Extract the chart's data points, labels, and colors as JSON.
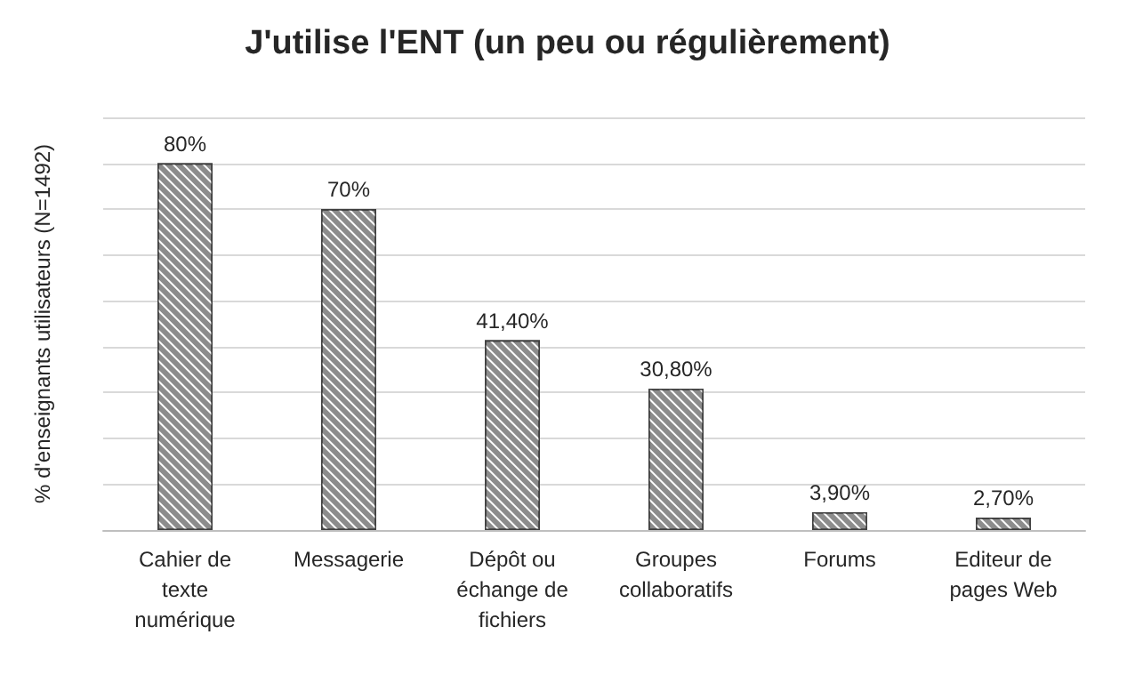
{
  "chart_data": {
    "type": "bar",
    "title": "J'utilise l'ENT (un peu ou régulièrement)",
    "ylabel": "% d'enseignants utilisateurs (N=1492)",
    "categories": [
      "Cahier de texte numérique",
      "Messagerie",
      "Dépôt ou échange de fichiers",
      "Groupes collaboratifs",
      "Forums",
      "Editeur de pages Web"
    ],
    "values": [
      80,
      70,
      41.4,
      30.8,
      3.9,
      2.7
    ],
    "value_labels": [
      "80%",
      "70%",
      "41,40%",
      "30,80%",
      "3,90%",
      "2,70%"
    ],
    "color": "#8c8c8c",
    "ylim": [
      0,
      90
    ],
    "yticks": [
      {
        "value": 0,
        "label": null
      },
      {
        "value": 10,
        "label": null
      },
      {
        "value": 20,
        "label": null
      },
      {
        "value": 30,
        "label": null
      },
      {
        "value": 40,
        "label": null
      },
      {
        "value": 50,
        "label": null
      },
      {
        "value": 60,
        "label": null
      },
      {
        "value": 70,
        "label": null
      },
      {
        "value": 80,
        "label": null
      },
      {
        "value": 90,
        "label": null
      }
    ],
    "grid": "y",
    "tick_labels": "x"
  }
}
